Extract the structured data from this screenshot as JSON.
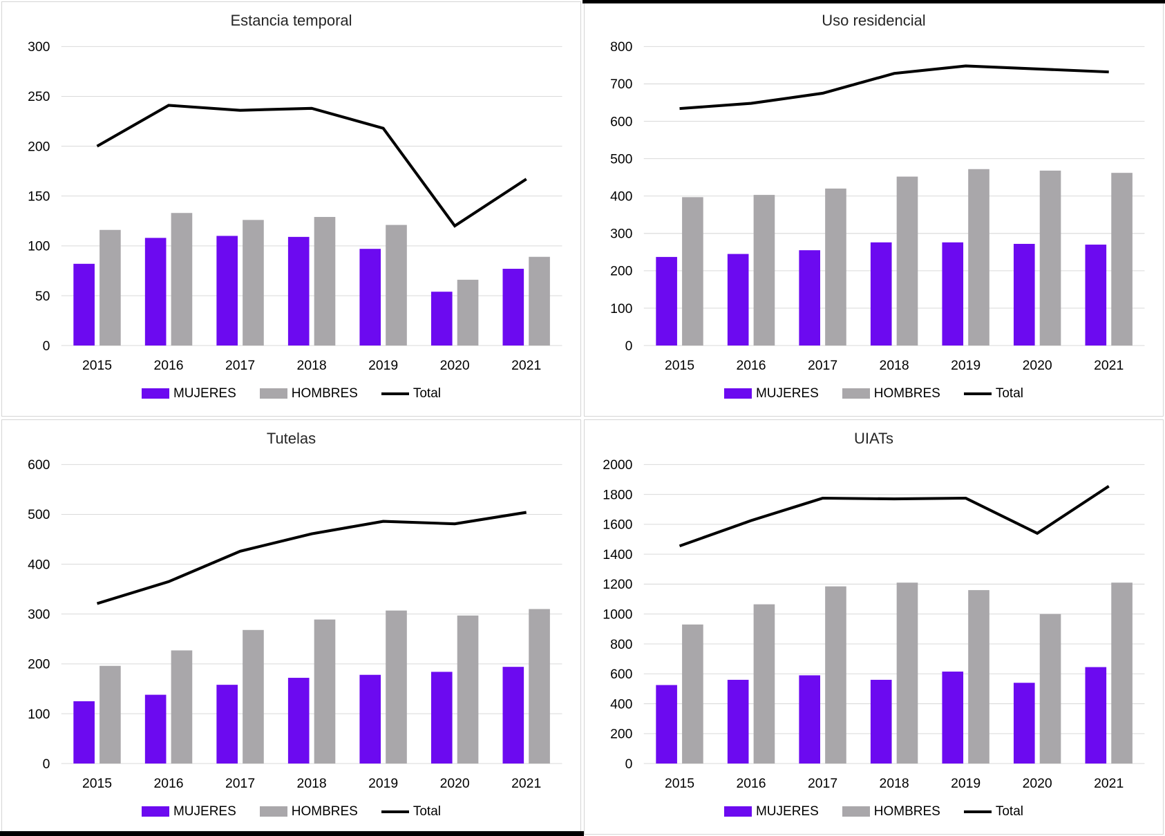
{
  "legend": {
    "mujeres": "MUJERES",
    "hombres": "HOMBRES",
    "total": "Total"
  },
  "colors": {
    "mujeres": "#6C0AF0",
    "hombres": "#A9A7AA",
    "total": "#000000",
    "grid": "#D9D9D9",
    "panel_border": "#D4D4D4",
    "accent_edge": "#000000",
    "title_text": "#262626",
    "axis_text": "#000000"
  },
  "chart_data": [
    {
      "type": "bar",
      "title": "Estancia temporal",
      "categories": [
        "2015",
        "2016",
        "2017",
        "2018",
        "2019",
        "2020",
        "2021"
      ],
      "ylim": [
        0,
        300
      ],
      "ytick": 50,
      "grid": true,
      "legend_position": "bottom",
      "series": [
        {
          "name": "MUJERES",
          "type": "bar",
          "values": [
            82,
            108,
            110,
            109,
            97,
            54,
            77
          ]
        },
        {
          "name": "HOMBRES",
          "type": "bar",
          "values": [
            116,
            133,
            126,
            129,
            121,
            66,
            89
          ]
        },
        {
          "name": "Total",
          "type": "line",
          "values": [
            200,
            241,
            236,
            238,
            218,
            120,
            167
          ]
        }
      ]
    },
    {
      "type": "bar",
      "title": "Uso residencial",
      "categories": [
        "2015",
        "2016",
        "2017",
        "2018",
        "2019",
        "2020",
        "2021"
      ],
      "ylim": [
        0,
        800
      ],
      "ytick": 100,
      "grid": true,
      "legend_position": "bottom",
      "series": [
        {
          "name": "MUJERES",
          "type": "bar",
          "values": [
            237,
            245,
            255,
            276,
            276,
            272,
            270
          ]
        },
        {
          "name": "HOMBRES",
          "type": "bar",
          "values": [
            397,
            403,
            420,
            452,
            472,
            468,
            462
          ]
        },
        {
          "name": "Total",
          "type": "line",
          "values": [
            634,
            648,
            675,
            728,
            748,
            740,
            732
          ]
        }
      ]
    },
    {
      "type": "bar",
      "title": "Tutelas",
      "categories": [
        "2015",
        "2016",
        "2017",
        "2018",
        "2019",
        "2020",
        "2021"
      ],
      "ylim": [
        0,
        600
      ],
      "ytick": 100,
      "grid": true,
      "legend_position": "bottom",
      "series": [
        {
          "name": "MUJERES",
          "type": "bar",
          "values": [
            125,
            138,
            158,
            172,
            178,
            184,
            194
          ]
        },
        {
          "name": "HOMBRES",
          "type": "bar",
          "values": [
            196,
            227,
            268,
            289,
            307,
            297,
            310
          ]
        },
        {
          "name": "Total",
          "type": "line",
          "values": [
            321,
            365,
            426,
            461,
            486,
            481,
            504
          ]
        }
      ]
    },
    {
      "type": "bar",
      "title": "UIATs",
      "categories": [
        "2015",
        "2016",
        "2017",
        "2018",
        "2019",
        "2020",
        "2021"
      ],
      "ylim": [
        0,
        2000
      ],
      "ytick": 200,
      "grid": true,
      "legend_position": "bottom",
      "series": [
        {
          "name": "MUJERES",
          "type": "bar",
          "values": [
            525,
            560,
            590,
            560,
            615,
            540,
            645
          ]
        },
        {
          "name": "HOMBRES",
          "type": "bar",
          "values": [
            930,
            1065,
            1185,
            1210,
            1160,
            1000,
            1210
          ]
        },
        {
          "name": "Total",
          "type": "line",
          "values": [
            1455,
            1625,
            1775,
            1770,
            1775,
            1540,
            1855
          ]
        }
      ]
    }
  ]
}
